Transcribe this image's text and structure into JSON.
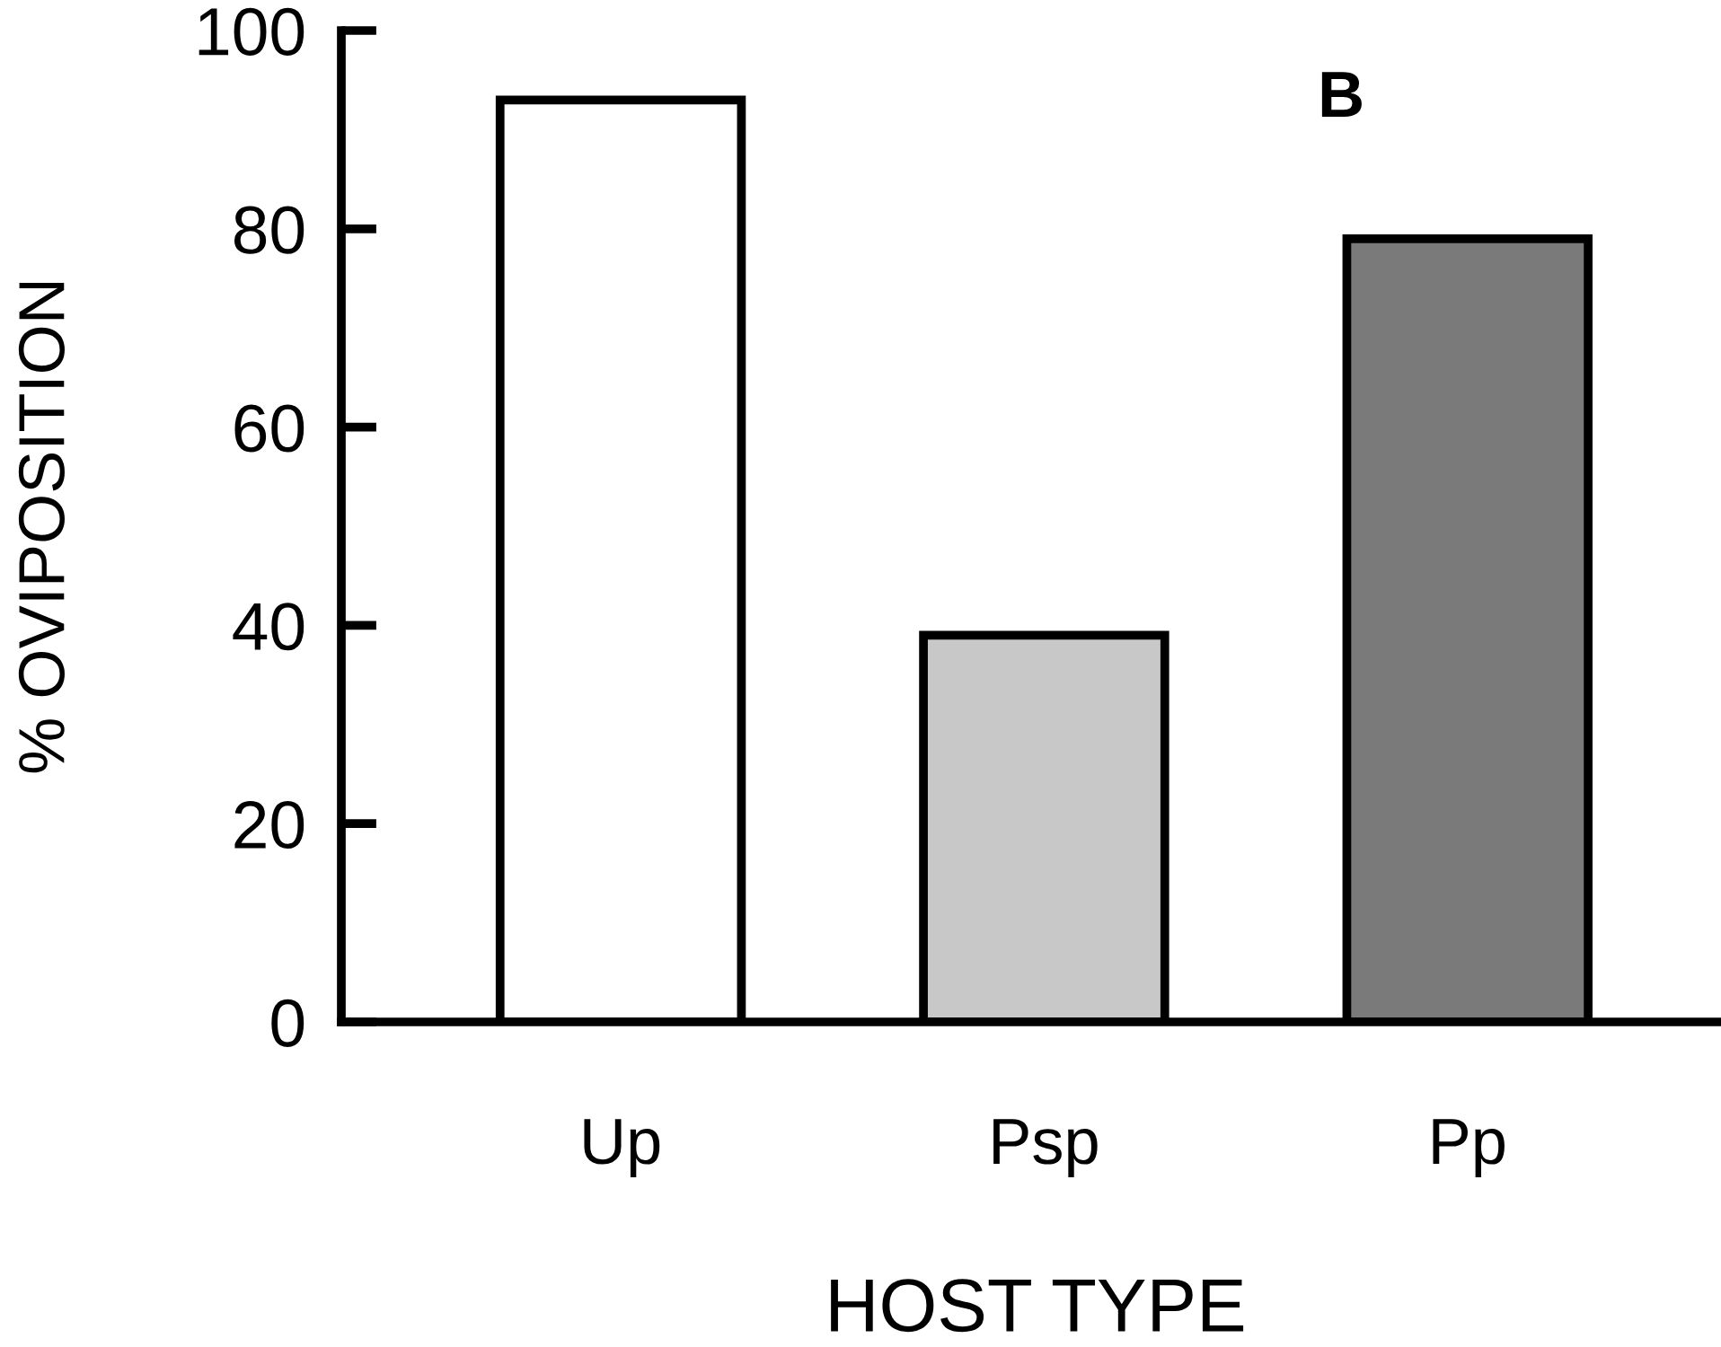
{
  "chart_data": {
    "type": "bar",
    "categories": [
      "Up",
      "Psp",
      "Pp"
    ],
    "values": [
      93,
      39,
      79
    ],
    "colors": [
      "#ffffff",
      "#c8c8c8",
      "#7a7a7a"
    ],
    "xlabel": "HOST TYPE",
    "ylabel": "% OVIPOSITION",
    "ylim": [
      0,
      100
    ],
    "yticks": [
      0,
      20,
      40,
      60,
      80,
      100
    ],
    "annotations": [
      "B"
    ],
    "grid": false,
    "legend": false
  }
}
